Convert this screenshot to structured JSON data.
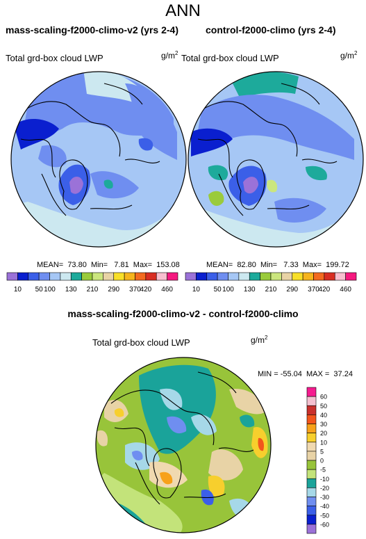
{
  "season": "ANN",
  "panels": [
    {
      "case_title": "mass-scaling-f2000-climo-v2 (yrs 2-4)",
      "variable": "Total grd-box cloud LWP",
      "units_base": "g/m",
      "units_exp": "2",
      "stats_text": "MEAN=  73.80  Min=   7.81  Max=  153.08"
    },
    {
      "case_title": "control-f2000-climo (yrs 2-4)",
      "variable": "Total grd-box cloud LWP",
      "units_base": "g/m",
      "units_exp": "2",
      "stats_text": "MEAN=  82.80  Min=   7.33  Max=  199.72"
    }
  ],
  "field_colorbar": {
    "labels": [
      "10",
      "50",
      "100",
      "130",
      "210",
      "290",
      "370",
      "420",
      "460"
    ],
    "colors": [
      "#9b72d8",
      "#0a1fcf",
      "#3b5fe8",
      "#6f8ef0",
      "#a6c7f5",
      "#cce8f0",
      "#1daa9b",
      "#9acb3c",
      "#cbe67e",
      "#e8d3a6",
      "#f8df28",
      "#f6b41c",
      "#f36a1f",
      "#d82d22",
      "#f8bfcf",
      "#f5197f"
    ]
  },
  "difference": {
    "title": "mass-scaling-f2000-climo-v2 - control-f2000-climo",
    "variable": "Total grd-box cloud LWP",
    "units_base": "g/m",
    "units_exp": "2",
    "minmax_text": "MIN = -55.04  MAX =  37.24",
    "colorbar_labels": [
      "60",
      "50",
      "40",
      "30",
      "20",
      "10",
      "5",
      "0",
      "-5",
      "-10",
      "-20",
      "-30",
      "-40",
      "-50",
      "-60"
    ],
    "colorbar_colors": [
      "#f51b8f",
      "#f4c0cf",
      "#c9302c",
      "#f2551c",
      "#f7a11a",
      "#f7cf2d",
      "#f0d9b0",
      "#e8d3a6",
      "#98c43a",
      "#c3e37a",
      "#1aa39a",
      "#a6d8e8",
      "#6f8ef0",
      "#3b5fe8",
      "#0a1fcf",
      "#9b72d8"
    ]
  }
}
